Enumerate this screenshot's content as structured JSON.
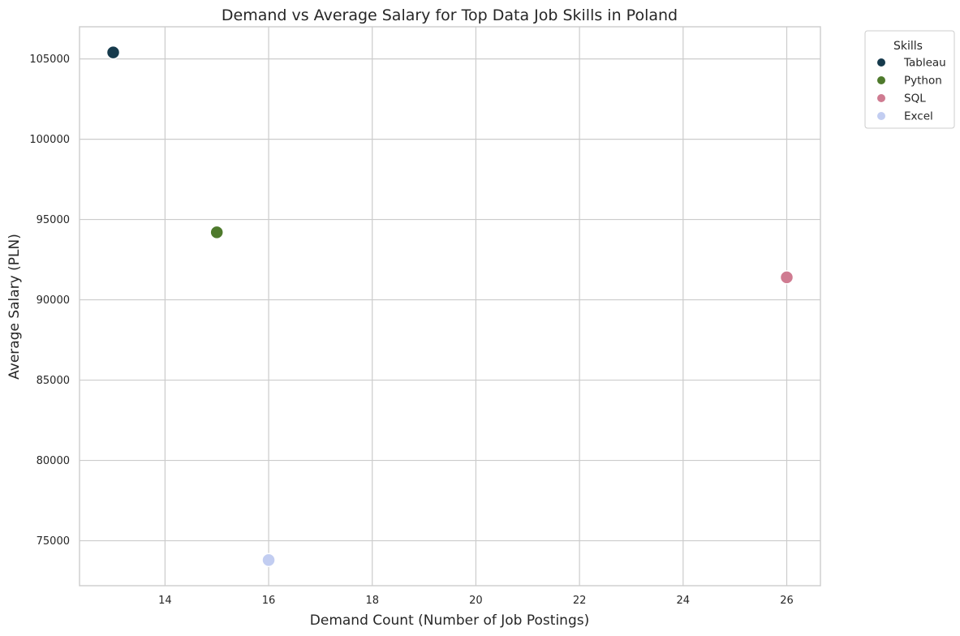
{
  "chart_data": {
    "type": "scatter",
    "title": "Demand vs Average Salary for Top Data Job Skills in Poland",
    "xlabel": "Demand Count (Number of Job Postings)",
    "ylabel": "Average Salary (PLN)",
    "xlim": [
      12.35,
      26.65
    ],
    "ylim": [
      72200,
      107000
    ],
    "xticks": [
      14,
      16,
      18,
      20,
      22,
      24,
      26
    ],
    "yticks": [
      75000,
      80000,
      85000,
      90000,
      95000,
      100000,
      105000
    ],
    "grid": true,
    "legend": {
      "title": "Skills",
      "position": "outside-top-right"
    },
    "points": [
      {
        "name": "Tableau",
        "x": 13,
        "y": 105400,
        "color": "#163a4c"
      },
      {
        "name": "Python",
        "x": 15,
        "y": 94200,
        "color": "#4e7a2c"
      },
      {
        "name": "SQL",
        "x": 26,
        "y": 91400,
        "color": "#cf7b91"
      },
      {
        "name": "Excel",
        "x": 16,
        "y": 73800,
        "color": "#c2cdf1"
      }
    ]
  }
}
